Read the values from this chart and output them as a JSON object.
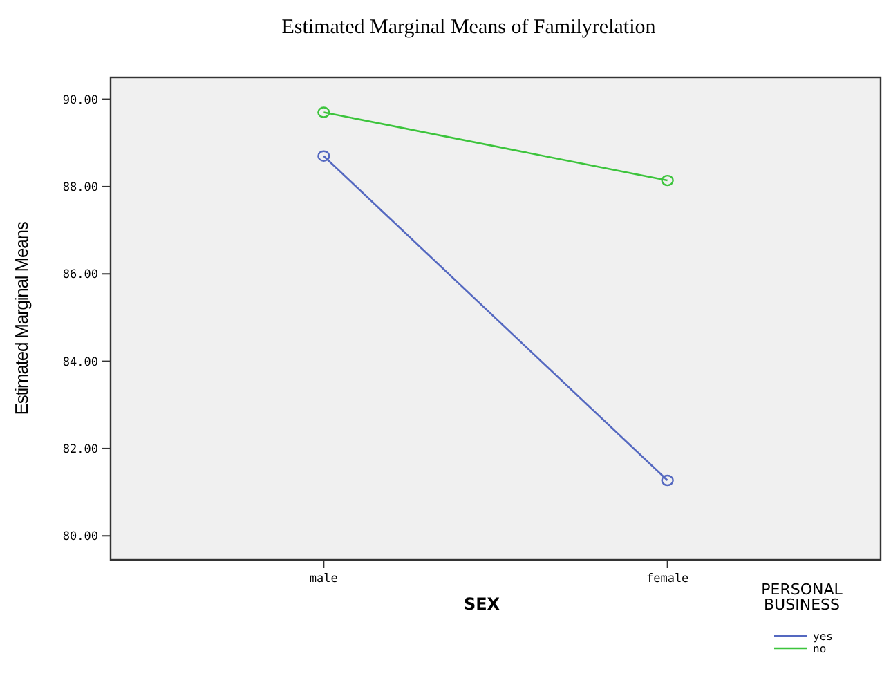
{
  "chart_data": {
    "type": "line",
    "title": "Estimated Marginal Means of Familyrelation",
    "xlabel": "SEX",
    "ylabel": "Estimated Marginal Means",
    "legend_title": "PERSONAL BUSINESS",
    "categories": [
      "male",
      "female"
    ],
    "series": [
      {
        "name": "yes",
        "color": "#5468c0",
        "values": [
          88.7,
          81.27
        ]
      },
      {
        "name": "no",
        "color": "#3cc43c",
        "values": [
          89.7,
          88.14
        ]
      }
    ],
    "ylim": [
      79.45,
      90.5
    ],
    "yticks": [
      {
        "value": 80,
        "label": "80.00"
      },
      {
        "value": 82,
        "label": "82.00"
      },
      {
        "value": 84,
        "label": "84.00"
      },
      {
        "value": 86,
        "label": "86.00"
      },
      {
        "value": 88,
        "label": "88.00"
      },
      {
        "value": 90,
        "label": "90.00"
      }
    ],
    "marker": "circle",
    "legend": "bottom right"
  }
}
